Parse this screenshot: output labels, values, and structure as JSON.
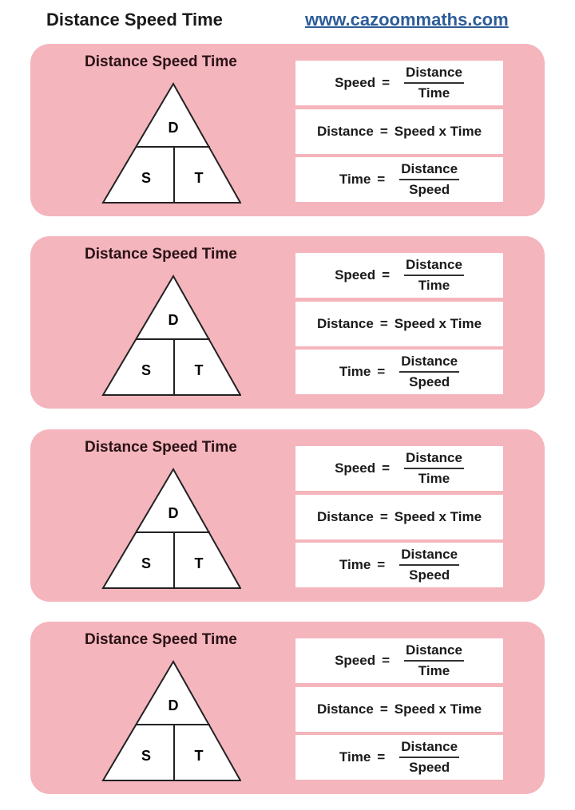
{
  "header": {
    "title": "Distance Speed Time",
    "link": "www.cazoommaths.com"
  },
  "colors": {
    "card": "#f4b5bd",
    "link": "#2d5c99"
  },
  "cards": [
    {
      "title": "Distance Speed Time",
      "triangle": {
        "top": "D",
        "left": "S",
        "right": "T"
      },
      "formulas": [
        {
          "lhs": "Speed",
          "eq": "=",
          "num": "Distance",
          "den": "Time"
        },
        {
          "lhs": "Distance",
          "eq": "=",
          "rhs": "Speed x Time"
        },
        {
          "lhs": "Time",
          "eq": "=",
          "num": "Distance",
          "den": "Speed"
        }
      ]
    },
    {
      "title": "Distance Speed Time",
      "triangle": {
        "top": "D",
        "left": "S",
        "right": "T"
      },
      "formulas": [
        {
          "lhs": "Speed",
          "eq": "=",
          "num": "Distance",
          "den": "Time"
        },
        {
          "lhs": "Distance",
          "eq": "=",
          "rhs": "Speed x Time"
        },
        {
          "lhs": "Time",
          "eq": "=",
          "num": "Distance",
          "den": "Speed"
        }
      ]
    },
    {
      "title": "Distance Speed Time",
      "triangle": {
        "top": "D",
        "left": "S",
        "right": "T"
      },
      "formulas": [
        {
          "lhs": "Speed",
          "eq": "=",
          "num": "Distance",
          "den": "Time"
        },
        {
          "lhs": "Distance",
          "eq": "=",
          "rhs": "Speed x Time"
        },
        {
          "lhs": "Time",
          "eq": "=",
          "num": "Distance",
          "den": "Speed"
        }
      ]
    },
    {
      "title": "Distance Speed Time",
      "triangle": {
        "top": "D",
        "left": "S",
        "right": "T"
      },
      "formulas": [
        {
          "lhs": "Speed",
          "eq": "=",
          "num": "Distance",
          "den": "Time"
        },
        {
          "lhs": "Distance",
          "eq": "=",
          "rhs": "Speed x Time"
        },
        {
          "lhs": "Time",
          "eq": "=",
          "num": "Distance",
          "den": "Speed"
        }
      ]
    }
  ]
}
